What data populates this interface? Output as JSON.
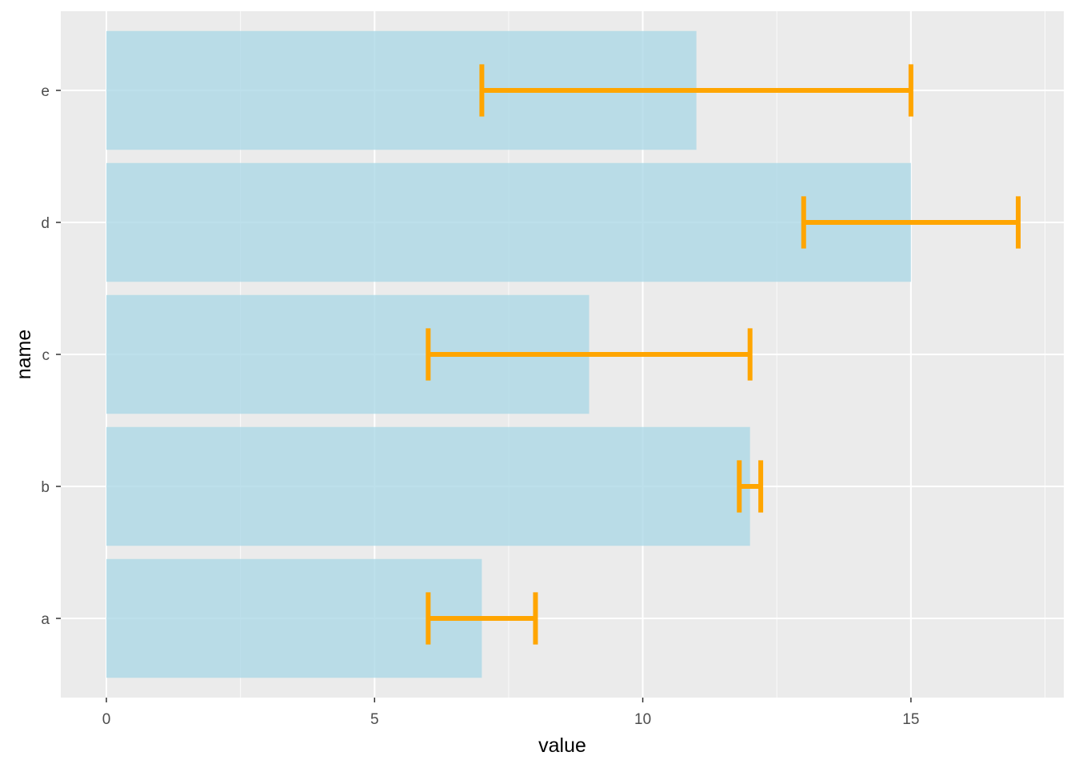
{
  "chart_data": {
    "type": "bar",
    "orientation": "horizontal",
    "xlabel": "value",
    "ylabel": "name",
    "categories": [
      "a",
      "b",
      "c",
      "d",
      "e"
    ],
    "values": [
      7,
      12,
      9,
      15,
      11
    ],
    "error_bars": [
      {
        "name": "a",
        "low": 6,
        "high": 8
      },
      {
        "name": "b",
        "low": 11.8,
        "high": 12.2
      },
      {
        "name": "c",
        "low": 6,
        "high": 12
      },
      {
        "name": "d",
        "low": 13,
        "high": 17
      },
      {
        "name": "e",
        "low": 7,
        "high": 15
      }
    ],
    "xlim": [
      -0.85,
      17.85
    ],
    "xticks": [
      0,
      5,
      10,
      15
    ],
    "xtick_labels": [
      "0",
      "5",
      "10",
      "15"
    ],
    "x_minor_ticks": [
      2.5,
      7.5,
      12.5,
      17.5
    ],
    "grid": true,
    "colors": {
      "panel_background": "#ebebeb",
      "grid_major": "#ffffff",
      "bar_fill": "#add8e6",
      "bar_opacity": 0.8,
      "error_bar": "#ffa500"
    }
  }
}
